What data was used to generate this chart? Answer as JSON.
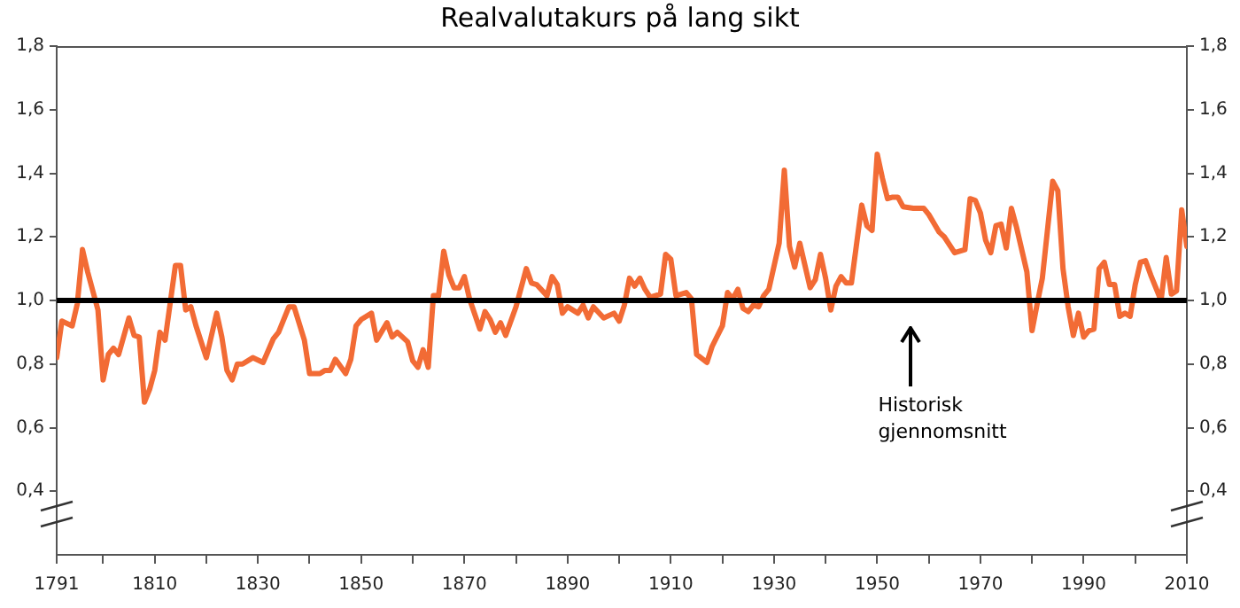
{
  "chart_data": {
    "type": "line",
    "title": "Realvalutakurs på lang sikt",
    "x": [
      1791,
      1792,
      1794,
      1795,
      1796,
      1797,
      1799,
      1800,
      1801,
      1802,
      1803,
      1805,
      1806,
      1807,
      1808,
      1809,
      1810,
      1811,
      1812,
      1814,
      1815,
      1816,
      1817,
      1818,
      1820,
      1822,
      1823,
      1824,
      1825,
      1826,
      1827,
      1829,
      1831,
      1833,
      1834,
      1836,
      1837,
      1839,
      1840,
      1842,
      1843,
      1844,
      1845,
      1847,
      1848,
      1849,
      1850,
      1852,
      1853,
      1855,
      1856,
      1857,
      1859,
      1860,
      1861,
      1862,
      1863,
      1864,
      1865,
      1866,
      1867,
      1868,
      1869,
      1870,
      1871,
      1873,
      1874,
      1875,
      1876,
      1877,
      1878,
      1880,
      1882,
      1883,
      1884,
      1886,
      1887,
      1888,
      1889,
      1890,
      1892,
      1893,
      1894,
      1895,
      1897,
      1899,
      1900,
      1901,
      1902,
      1903,
      1904,
      1905,
      1906,
      1908,
      1909,
      1910,
      1911,
      1913,
      1914,
      1915,
      1917,
      1918,
      1920,
      1921,
      1922,
      1923,
      1924,
      1925,
      1926,
      1927,
      1928,
      1929,
      1931,
      1932,
      1933,
      1934,
      1935,
      1936,
      1937,
      1938,
      1939,
      1940,
      1941,
      1942,
      1943,
      1944,
      1945,
      1947,
      1948,
      1949,
      1950,
      1951,
      1952,
      1953,
      1954,
      1955,
      1957,
      1959,
      1960,
      1962,
      1963,
      1965,
      1966,
      1967,
      1968,
      1969,
      1970,
      1971,
      1972,
      1973,
      1974,
      1975,
      1976,
      1977,
      1979,
      1980,
      1981,
      1982,
      1984,
      1985,
      1986,
      1987,
      1988,
      1989,
      1990,
      1991,
      1992,
      1993,
      1994,
      1995,
      1996,
      1997,
      1998,
      1999,
      2000,
      2001,
      2002,
      2003,
      2005,
      2006,
      2007,
      2008,
      2009,
      2010
    ],
    "series": [
      {
        "color": "#f26b35",
        "values": [
          0.82,
          0.935,
          0.92,
          0.99,
          1.16,
          1.09,
          0.97,
          0.75,
          0.83,
          0.85,
          0.83,
          0.945,
          0.89,
          0.885,
          0.68,
          0.72,
          0.78,
          0.9,
          0.875,
          1.11,
          1.11,
          0.97,
          0.98,
          0.92,
          0.82,
          0.96,
          0.885,
          0.78,
          0.75,
          0.8,
          0.8,
          0.82,
          0.805,
          0.88,
          0.9,
          0.98,
          0.98,
          0.875,
          0.77,
          0.77,
          0.78,
          0.78,
          0.815,
          0.77,
          0.815,
          0.92,
          0.94,
          0.96,
          0.875,
          0.93,
          0.885,
          0.9,
          0.87,
          0.81,
          0.79,
          0.845,
          0.79,
          1.015,
          1.015,
          1.155,
          1.08,
          1.04,
          1.04,
          1.075,
          1.005,
          0.91,
          0.965,
          0.94,
          0.9,
          0.93,
          0.89,
          0.98,
          1.1,
          1.055,
          1.05,
          1.015,
          1.075,
          1.05,
          0.96,
          0.98,
          0.96,
          0.985,
          0.945,
          0.98,
          0.945,
          0.96,
          0.935,
          0.985,
          1.07,
          1.045,
          1.07,
          1.035,
          1.01,
          1.02,
          1.145,
          1.13,
          1.015,
          1.025,
          1.005,
          0.83,
          0.805,
          0.855,
          0.92,
          1.025,
          1.005,
          1.035,
          0.975,
          0.965,
          0.985,
          0.98,
          1.015,
          1.035,
          1.18,
          1.41,
          1.17,
          1.105,
          1.18,
          1.11,
          1.04,
          1.065,
          1.145,
          1.07,
          0.97,
          1.045,
          1.075,
          1.055,
          1.055,
          1.3,
          1.235,
          1.22,
          1.46,
          1.385,
          1.32,
          1.325,
          1.325,
          1.295,
          1.29,
          1.29,
          1.27,
          1.215,
          1.2,
          1.15,
          1.155,
          1.16,
          1.32,
          1.315,
          1.275,
          1.19,
          1.15,
          1.235,
          1.24,
          1.165,
          1.29,
          1.23,
          1.09,
          0.905,
          0.99,
          1.07,
          1.375,
          1.345,
          1.1,
          0.98,
          0.89,
          0.96,
          0.885,
          0.905,
          0.91,
          1.1,
          1.12,
          1.05,
          1.05,
          0.95,
          0.96,
          0.95,
          1.05,
          1.12,
          1.125,
          1.08,
          1.0,
          1.135,
          1.02,
          1.03,
          1.285,
          1.17
        ]
      }
    ],
    "xlim": [
      1791,
      2010
    ],
    "xticks": [
      1791,
      {
        "value": 1800,
        "label": null
      },
      1810,
      {
        "value": 1820,
        "label": null
      },
      1830,
      {
        "value": 1840,
        "label": null
      },
      1850,
      {
        "value": 1860,
        "label": null
      },
      1870,
      {
        "value": 1880,
        "label": null
      },
      1890,
      {
        "value": 1900,
        "label": null
      },
      1910,
      {
        "value": 1920,
        "label": null
      },
      1930,
      {
        "value": 1940,
        "label": null
      },
      1950,
      {
        "value": 1960,
        "label": null
      },
      1970,
      {
        "value": 1980,
        "label": null
      },
      1990,
      {
        "value": 2000,
        "label": null
      },
      2010
    ],
    "ylim": [
      0.2,
      1.8
    ],
    "yticks": [
      {
        "value": 0.4,
        "label": "0,4"
      },
      {
        "value": 0.6,
        "label": "0,6"
      },
      {
        "value": 0.8,
        "label": "0,8"
      },
      {
        "value": 1.0,
        "label": "1,0"
      },
      {
        "value": 1.2,
        "label": "1,2"
      },
      {
        "value": 1.4,
        "label": "1,4"
      },
      {
        "value": 1.6,
        "label": "1,6"
      },
      {
        "value": 1.8,
        "label": "1,8"
      }
    ],
    "y2lim": [
      0.2,
      1.8
    ],
    "y2ticks": [
      {
        "value": 0.4,
        "label": "0,4"
      },
      {
        "value": 0.6,
        "label": "0,6"
      },
      {
        "value": 0.8,
        "label": "0,8"
      },
      {
        "value": 1.0,
        "label": "1,0"
      },
      {
        "value": 1.2,
        "label": "1,2"
      },
      {
        "value": 1.4,
        "label": "1,4"
      },
      {
        "value": 1.6,
        "label": "1,6"
      },
      {
        "value": 1.8,
        "label": "1,8"
      }
    ],
    "ref_lines": [
      {
        "axis": "y",
        "value": 1.0,
        "color": "#000000",
        "label": "Historisk gjennomsnitt"
      }
    ],
    "grid": false,
    "legend": false,
    "marker": "none",
    "line_style": "solid"
  }
}
